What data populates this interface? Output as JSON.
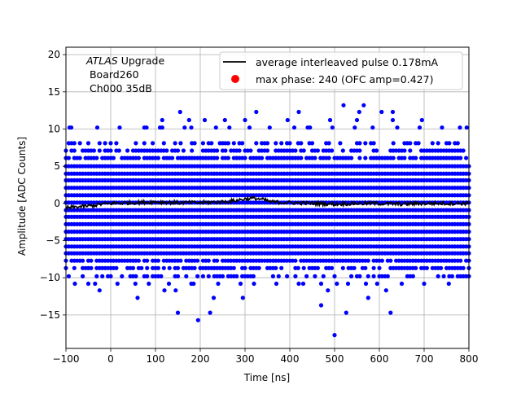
{
  "chart_data": {
    "type": "scatter",
    "xlabel": "Time [ns]",
    "ylabel": "Amplitude [ADC Counts]",
    "xlim": [
      -100,
      800
    ],
    "ylim": [
      -19.5,
      21
    ],
    "xticks": [
      -100,
      0,
      100,
      200,
      300,
      400,
      500,
      600,
      700,
      800
    ],
    "yticks": [
      -15,
      -10,
      -5,
      0,
      5,
      10,
      15,
      20
    ],
    "grid": true,
    "legend_placement": "top-right",
    "annotation": {
      "italic": "ATLAS",
      "rest": " Upgrade",
      "line2": " Board260",
      "line3": " Ch000 35dB"
    },
    "series": [
      {
        "name": "average interleaved pulse 0.178mA",
        "kind": "line",
        "color": "#000000",
        "points": [
          [
            -100,
            -0.6
          ],
          [
            -80,
            -0.5
          ],
          [
            -60,
            -0.4
          ],
          [
            -40,
            -0.3
          ],
          [
            -20,
            -0.1
          ],
          [
            0,
            0.0
          ],
          [
            50,
            0.1
          ],
          [
            100,
            0.2
          ],
          [
            150,
            0.1
          ],
          [
            200,
            0.1
          ],
          [
            250,
            0.2
          ],
          [
            280,
            0.4
          ],
          [
            300,
            0.6
          ],
          [
            320,
            0.7
          ],
          [
            340,
            0.5
          ],
          [
            360,
            0.2
          ],
          [
            400,
            0.1
          ],
          [
            450,
            0.0
          ],
          [
            500,
            -0.1
          ],
          [
            550,
            0.0
          ],
          [
            600,
            0.0
          ],
          [
            650,
            -0.1
          ],
          [
            700,
            0.0
          ],
          [
            750,
            0.0
          ],
          [
            800,
            0.0
          ]
        ]
      },
      {
        "name": "max phase: 240 (OFC amp=0.427)",
        "kind": "scatter",
        "color": "#ff0000"
      },
      {
        "name": "",
        "kind": "scatter",
        "color": "#0000ff",
        "x_step": 6.25,
        "dense_levels": [
          -9.8,
          -8.7,
          -7.7,
          -6.7,
          -5.8,
          -4.8,
          -3.8,
          -2.8,
          -1.8,
          -0.9,
          0.1,
          1.1,
          2.1,
          3.1,
          4.0,
          5.0,
          6.1,
          7.1,
          8.1
        ],
        "outliers": [
          [
            -92,
            10.2
          ],
          [
            -88,
            10.2
          ],
          [
            -30,
            10.2
          ],
          [
            20,
            10.2
          ],
          [
            75,
            10.2
          ],
          [
            80,
            10.2
          ],
          [
            110,
            10.2
          ],
          [
            115,
            10.2
          ],
          [
            165,
            10.2
          ],
          [
            180,
            10.2
          ],
          [
            235,
            10.2
          ],
          [
            265,
            10.2
          ],
          [
            310,
            10.2
          ],
          [
            355,
            10.2
          ],
          [
            410,
            10.2
          ],
          [
            440,
            10.2
          ],
          [
            445,
            10.2
          ],
          [
            495,
            10.2
          ],
          [
            545,
            10.2
          ],
          [
            585,
            10.2
          ],
          [
            640,
            10.2
          ],
          [
            690,
            10.2
          ],
          [
            740,
            10.2
          ],
          [
            780,
            10.2
          ],
          [
            795,
            10.2
          ],
          [
            -80,
            -10.8
          ],
          [
            -50,
            -10.8
          ],
          [
            -35,
            -10.8
          ],
          [
            15,
            -10.8
          ],
          [
            55,
            -10.8
          ],
          [
            85,
            -10.8
          ],
          [
            130,
            -10.8
          ],
          [
            180,
            -10.8
          ],
          [
            185,
            -10.8
          ],
          [
            240,
            -10.8
          ],
          [
            290,
            -10.8
          ],
          [
            320,
            -10.8
          ],
          [
            370,
            -10.8
          ],
          [
            420,
            -10.8
          ],
          [
            430,
            -10.8
          ],
          [
            470,
            -10.8
          ],
          [
            505,
            -10.8
          ],
          [
            530,
            -10.8
          ],
          [
            570,
            -10.8
          ],
          [
            595,
            -10.8
          ],
          [
            650,
            -10.8
          ],
          [
            700,
            -10.8
          ],
          [
            755,
            -10.8
          ],
          [
            -25,
            -11.7
          ],
          [
            60,
            -12.7
          ],
          [
            120,
            -11.7
          ],
          [
            145,
            -11.7
          ],
          [
            230,
            -12.7
          ],
          [
            295,
            -12.7
          ],
          [
            485,
            -11.7
          ],
          [
            575,
            -12.7
          ],
          [
            615,
            -11.7
          ],
          [
            115,
            11.2
          ],
          [
            175,
            11.2
          ],
          [
            210,
            11.2
          ],
          [
            255,
            11.2
          ],
          [
            300,
            11.2
          ],
          [
            395,
            11.2
          ],
          [
            490,
            11.2
          ],
          [
            550,
            11.2
          ],
          [
            630,
            11.2
          ],
          [
            695,
            11.2
          ],
          [
            155,
            12.3
          ],
          [
            325,
            12.3
          ],
          [
            420,
            12.3
          ],
          [
            555,
            12.3
          ],
          [
            605,
            12.3
          ],
          [
            630,
            12.3
          ],
          [
            520,
            13.2
          ],
          [
            565,
            13.2
          ],
          [
            150,
            -14.7
          ],
          [
            222,
            -14.7
          ],
          [
            470,
            -13.7
          ],
          [
            526,
            -14.7
          ],
          [
            625,
            -14.7
          ],
          [
            195,
            -15.7
          ],
          [
            500,
            -17.7
          ]
        ]
      }
    ]
  }
}
